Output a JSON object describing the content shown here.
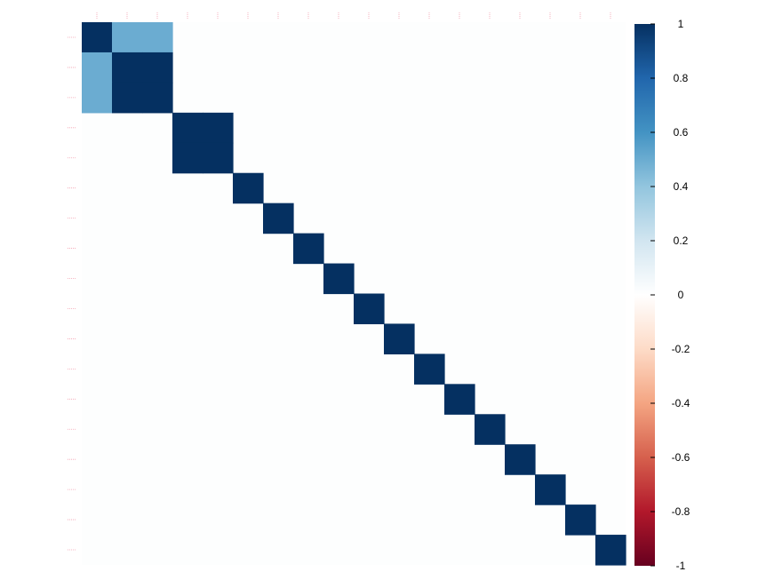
{
  "chart_data": {
    "type": "heatmap",
    "title": "",
    "xlabel": "",
    "ylabel": "",
    "n": 18,
    "row_labels": [
      "",
      "",
      "",
      "",
      "",
      "",
      "",
      "",
      "",
      "",
      "",
      "",
      "",
      "",
      "",
      "",
      "",
      ""
    ],
    "col_labels": [
      "",
      "",
      "",
      "",
      "",
      "",
      "",
      "",
      "",
      "",
      "",
      "",
      "",
      "",
      "",
      "",
      "",
      ""
    ],
    "matrix_note_free": true,
    "matrix": [
      [
        1.0,
        0.5,
        0.5,
        0,
        0,
        0,
        0,
        0,
        0,
        0,
        0,
        0,
        0,
        0,
        0,
        0,
        0,
        0
      ],
      [
        0.5,
        1.0,
        1.0,
        0,
        0,
        0,
        0,
        0,
        0,
        0,
        0,
        0,
        0,
        0,
        0,
        0,
        0,
        0
      ],
      [
        0.5,
        1.0,
        1.0,
        0,
        0,
        0,
        0,
        0,
        0,
        0,
        0,
        0,
        0,
        0,
        0,
        0,
        0,
        0
      ],
      [
        0,
        0,
        0,
        1.0,
        1.0,
        0,
        0,
        0,
        0,
        0,
        0,
        0,
        0,
        0,
        0,
        0,
        0,
        0
      ],
      [
        0,
        0,
        0,
        1.0,
        1.0,
        0,
        0,
        0,
        0,
        0,
        0,
        0,
        0,
        0,
        0,
        0,
        0,
        0
      ],
      [
        0,
        0,
        0,
        0,
        0,
        1.0,
        0,
        0,
        0,
        0,
        0,
        0,
        0,
        0,
        0,
        0,
        0,
        0
      ],
      [
        0,
        0,
        0,
        0,
        0,
        0,
        1.0,
        0,
        0,
        0,
        0,
        0,
        0,
        0,
        0,
        0,
        0,
        0
      ],
      [
        0,
        0,
        0,
        0,
        0,
        0,
        0,
        1.0,
        0,
        0,
        0,
        0,
        0,
        0,
        0,
        0,
        0,
        0
      ],
      [
        0,
        0,
        0,
        0,
        0,
        0,
        0,
        0,
        1.0,
        0,
        0,
        0,
        0,
        0,
        0,
        0,
        0,
        0
      ],
      [
        0,
        0,
        0,
        0,
        0,
        0,
        0,
        0,
        0,
        1.0,
        0,
        0,
        0,
        0,
        0,
        0,
        0,
        0
      ],
      [
        0,
        0,
        0,
        0,
        0,
        0,
        0,
        0,
        0,
        0,
        1.0,
        0,
        0,
        0,
        0,
        0,
        0,
        0
      ],
      [
        0,
        0,
        0,
        0,
        0,
        0,
        0,
        0,
        0,
        0,
        0,
        1.0,
        0,
        0,
        0,
        0,
        0,
        0
      ],
      [
        0,
        0,
        0,
        0,
        0,
        0,
        0,
        0,
        0,
        0,
        0,
        0,
        1.0,
        0,
        0,
        0,
        0,
        0
      ],
      [
        0,
        0,
        0,
        0,
        0,
        0,
        0,
        0,
        0,
        0,
        0,
        0,
        0,
        1.0,
        0,
        0,
        0,
        0
      ],
      [
        0,
        0,
        0,
        0,
        0,
        0,
        0,
        0,
        0,
        0,
        0,
        0,
        0,
        0,
        1.0,
        0,
        0,
        0
      ],
      [
        0,
        0,
        0,
        0,
        0,
        0,
        0,
        0,
        0,
        0,
        0,
        0,
        0,
        0,
        0,
        1.0,
        0,
        0
      ],
      [
        0,
        0,
        0,
        0,
        0,
        0,
        0,
        0,
        0,
        0,
        0,
        0,
        0,
        0,
        0,
        0,
        1.0,
        0
      ],
      [
        0,
        0,
        0,
        0,
        0,
        0,
        0,
        0,
        0,
        0,
        0,
        0,
        0,
        0,
        0,
        0,
        0,
        1.0
      ]
    ],
    "color_scale": {
      "range": [
        -1,
        1
      ],
      "ticks": [
        "1",
        "0.8",
        "0.6",
        "0.4",
        "0.2",
        "0",
        "-0.2",
        "-0.4",
        "-0.6",
        "-0.8",
        "-1"
      ],
      "colors": [
        "#67001f",
        "#b2182b",
        "#d6604d",
        "#f4a582",
        "#fddbc7",
        "#ffffff",
        "#d1e5f0",
        "#92c5de",
        "#4393c3",
        "#2166ac",
        "#053061"
      ]
    },
    "grid": false,
    "legend": "right"
  }
}
